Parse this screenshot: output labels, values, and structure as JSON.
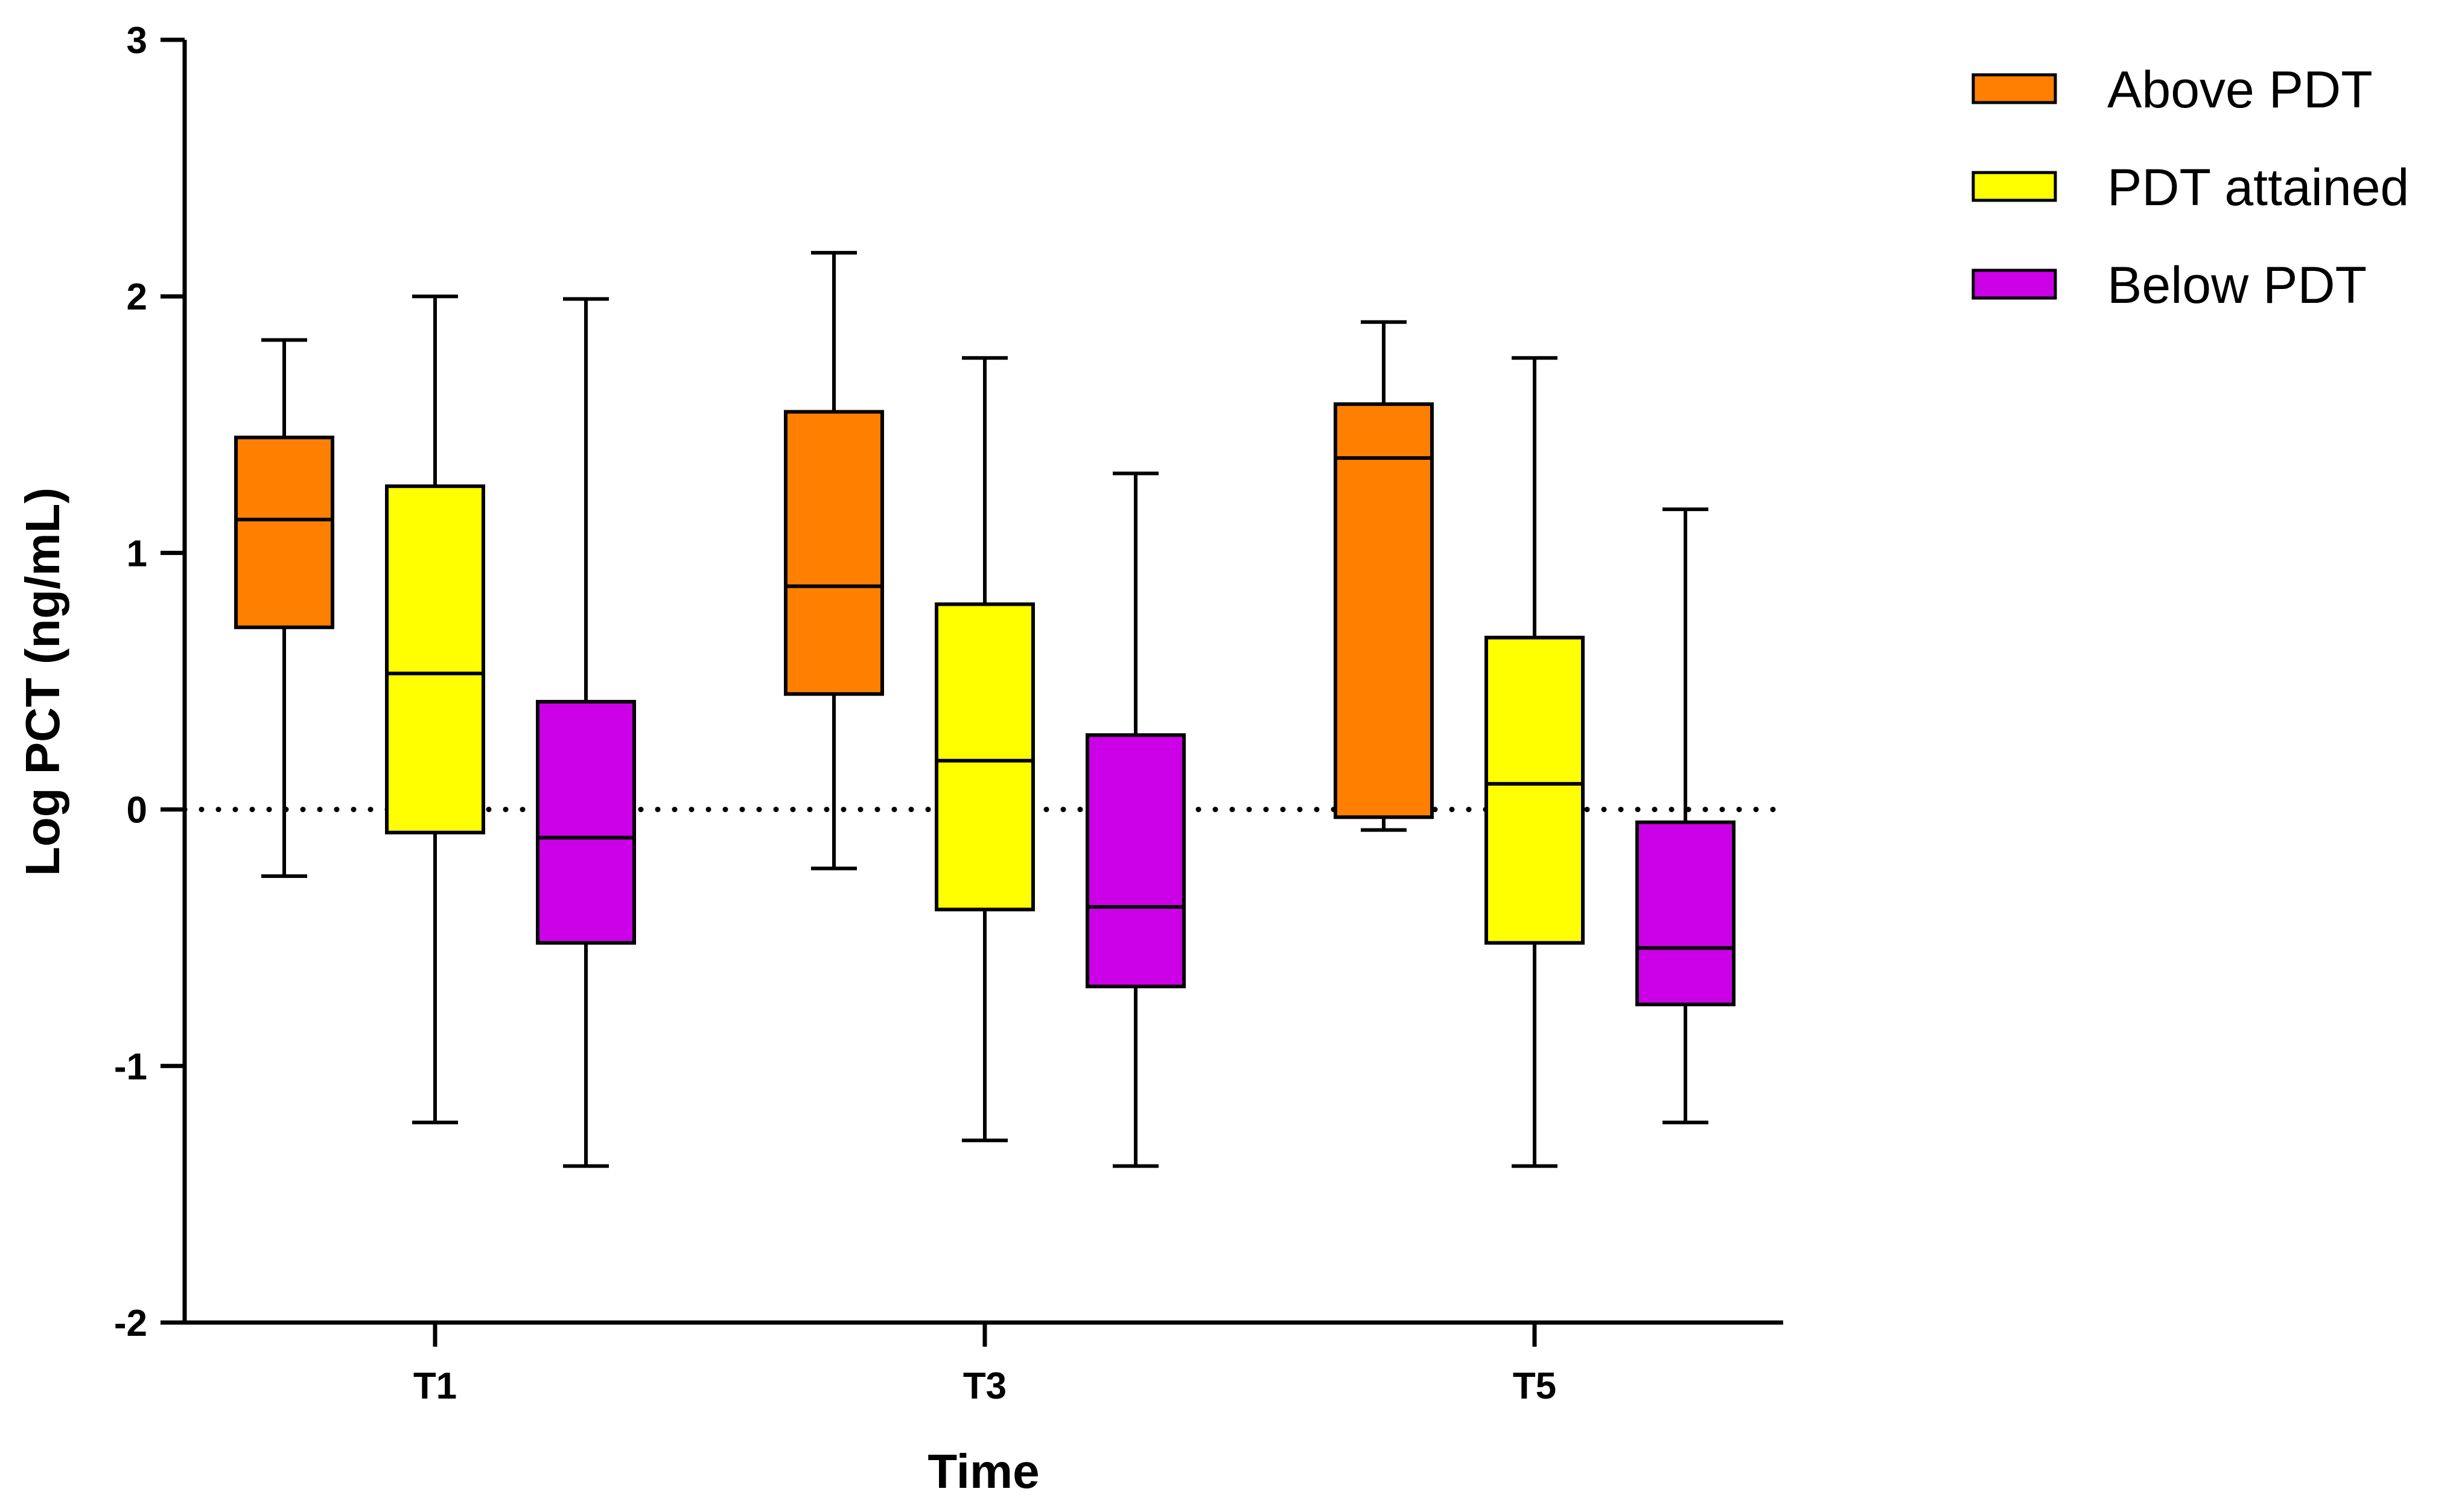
{
  "chart_data": {
    "type": "boxplot",
    "title": "",
    "xlabel": "Time",
    "ylabel": "Log PCT (ng/mL)",
    "ylim": [
      -2,
      3
    ],
    "yticks": [
      3,
      2,
      1,
      0,
      -1,
      -2
    ],
    "reference_line": {
      "y": 0,
      "style": "dotted"
    },
    "categories": [
      "T1",
      "T3",
      "T5"
    ],
    "series": [
      {
        "name": "Above PDT",
        "color": "#FF8000",
        "boxes": [
          {
            "min": -0.26,
            "q1": 0.71,
            "median": 1.13,
            "q3": 1.45,
            "max": 1.83
          },
          {
            "min": -0.23,
            "q1": 0.45,
            "median": 0.87,
            "q3": 1.55,
            "max": 2.17
          },
          {
            "min": -0.08,
            "q1": -0.03,
            "median": 1.37,
            "q3": 1.58,
            "max": 1.9
          }
        ]
      },
      {
        "name": "PDT attained",
        "color": "#FFFF00",
        "boxes": [
          {
            "min": -1.22,
            "q1": -0.09,
            "median": 0.53,
            "q3": 1.26,
            "max": 2.0
          },
          {
            "min": -1.29,
            "q1": -0.39,
            "median": 0.19,
            "q3": 0.8,
            "max": 1.76
          },
          {
            "min": -1.39,
            "q1": -0.52,
            "median": 0.1,
            "q3": 0.67,
            "max": 1.76
          }
        ]
      },
      {
        "name": "Below PDT",
        "color": "#CC00E6",
        "boxes": [
          {
            "min": -1.39,
            "q1": -0.52,
            "median": -0.11,
            "q3": 0.42,
            "max": 1.99
          },
          {
            "min": -1.39,
            "q1": -0.69,
            "median": -0.38,
            "q3": 0.29,
            "max": 1.31
          },
          {
            "min": -1.22,
            "q1": -0.76,
            "median": -0.54,
            "q3": -0.05,
            "max": 1.17
          }
        ]
      }
    ],
    "legend": {
      "position": "top-right",
      "entries": [
        "Above PDT",
        "PDT attained",
        "Below PDT"
      ]
    }
  }
}
